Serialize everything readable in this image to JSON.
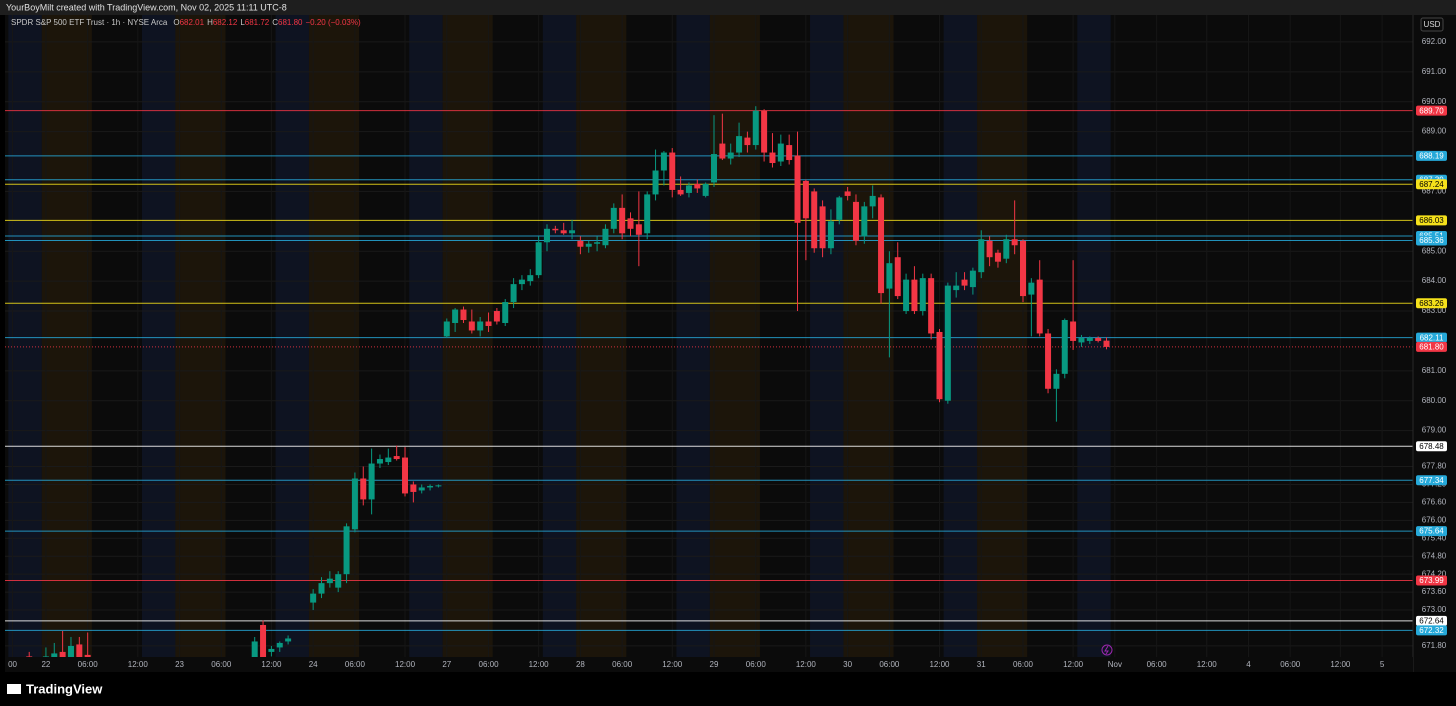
{
  "chart_data": {
    "type": "candlestick",
    "credit": "YourBoyMilt created with TradingView.com, Nov 02, 2025 11:11 UTC-8",
    "symbol": "SPDR S&P 500 ETF Trust · 1h · NYSE Arca",
    "legend_fields": [
      {
        "key": "O",
        "value": "682.01"
      },
      {
        "key": "H",
        "value": "682.12"
      },
      {
        "key": "L",
        "value": "681.72"
      },
      {
        "key": "C",
        "value": "681.80"
      }
    ],
    "change": "−0.20 (−0.03%)",
    "currency": "USD",
    "brand": "TradingView",
    "up_color": "#089981",
    "down_color": "#f23645",
    "grid": true,
    "xlim": [
      -4.9,
      163.7
    ],
    "ylim": [
      671.43,
      692.9
    ],
    "xticks": [
      {
        "value": -4,
        "label": "00"
      },
      {
        "value": 0,
        "label": "22"
      },
      {
        "value": 5,
        "label": "06:00"
      },
      {
        "value": 11,
        "label": "12:00"
      },
      {
        "value": 16,
        "label": "23"
      },
      {
        "value": 21,
        "label": "06:00"
      },
      {
        "value": 27,
        "label": "12:00"
      },
      {
        "value": 32,
        "label": "24"
      },
      {
        "value": 37,
        "label": "06:00"
      },
      {
        "value": 43,
        "label": "12:00"
      },
      {
        "value": 48,
        "label": "27"
      },
      {
        "value": 53,
        "label": "06:00"
      },
      {
        "value": 59,
        "label": "12:00"
      },
      {
        "value": 64,
        "label": "28"
      },
      {
        "value": 69,
        "label": "06:00"
      },
      {
        "value": 75,
        "label": "12:00"
      },
      {
        "value": 80,
        "label": "29"
      },
      {
        "value": 85,
        "label": "06:00"
      },
      {
        "value": 91,
        "label": "12:00"
      },
      {
        "value": 96,
        "label": "30"
      },
      {
        "value": 101,
        "label": "06:00"
      },
      {
        "value": 107,
        "label": "12:00"
      },
      {
        "value": 112,
        "label": "31"
      },
      {
        "value": 117,
        "label": "06:00"
      },
      {
        "value": 123,
        "label": "12:00"
      },
      {
        "value": 128,
        "label": "Nov"
      },
      {
        "value": 133,
        "label": "06:00"
      },
      {
        "value": 139,
        "label": "12:00"
      },
      {
        "value": 144,
        "label": "4"
      },
      {
        "value": 149,
        "label": "06:00"
      },
      {
        "value": 155,
        "label": "12:00"
      },
      {
        "value": 160,
        "label": "5"
      }
    ],
    "yticks": [
      {
        "value": 692,
        "label": "692.00"
      },
      {
        "value": 691,
        "label": "691.00"
      },
      {
        "value": 690,
        "label": "690.00"
      },
      {
        "value": 689,
        "label": "689.00"
      },
      {
        "value": 687,
        "label": "687.00"
      },
      {
        "value": 685,
        "label": "685.00"
      },
      {
        "value": 684,
        "label": "684.00"
      },
      {
        "value": 683,
        "label": "683.00"
      },
      {
        "value": 681,
        "label": "681.00"
      },
      {
        "value": 680,
        "label": "680.00"
      },
      {
        "value": 679,
        "label": "679.00"
      },
      {
        "value": 677.8,
        "label": "677.80"
      },
      {
        "value": 677.2,
        "label": "677.20"
      },
      {
        "value": 676.6,
        "label": "676.60"
      },
      {
        "value": 676,
        "label": "676.00"
      },
      {
        "value": 675.4,
        "label": "675.40"
      },
      {
        "value": 674.8,
        "label": "674.80"
      },
      {
        "value": 674.2,
        "label": "674.20"
      },
      {
        "value": 673.6,
        "label": "673.60"
      },
      {
        "value": 673,
        "label": "673.00"
      },
      {
        "value": 671.8,
        "label": "671.80"
      }
    ],
    "levels": [
      {
        "value": 689.7,
        "label": "689.70",
        "color": "#f23645"
      },
      {
        "value": 688.19,
        "label": "688.19",
        "color": "#26a9d9"
      },
      {
        "value": 687.39,
        "label": "687.39",
        "color": "#26a9d9"
      },
      {
        "value": 687.24,
        "label": "687.24",
        "color": "#f5e11b"
      },
      {
        "value": 686.03,
        "label": "686.03",
        "color": "#f5e11b"
      },
      {
        "value": 685.51,
        "label": "685.51",
        "color": "#26a9d9"
      },
      {
        "value": 685.36,
        "label": "685.36",
        "color": "#26a9d9"
      },
      {
        "value": 683.26,
        "label": "683.26",
        "color": "#f5e11b"
      },
      {
        "value": 682.11,
        "label": "682.11",
        "color": "#26a9d9"
      },
      {
        "value": 681.8,
        "label": "681.80",
        "color": "#f23645",
        "dashed": true
      },
      {
        "value": 678.48,
        "label": "678.48",
        "color": "#ffffff"
      },
      {
        "value": 677.34,
        "label": "677.34",
        "color": "#26a9d9"
      },
      {
        "value": 675.64,
        "label": "675.64",
        "color": "#26a9d9"
      },
      {
        "value": 673.99,
        "label": "673.99",
        "color": "#f23645"
      },
      {
        "value": 672.64,
        "label": "672.64",
        "color": "#ffffff"
      },
      {
        "value": 672.32,
        "label": "672.32",
        "color": "#26a9d9"
      }
    ],
    "candles": [
      {
        "x": -2,
        "open": 671.45,
        "high": 671.6,
        "low": 671.2,
        "close": 671.3
      },
      {
        "x": 0,
        "open": 671.3,
        "high": 671.75,
        "low": 671.1,
        "close": 671.45
      },
      {
        "x": 1,
        "open": 671.4,
        "high": 671.9,
        "low": 671.2,
        "close": 671.55
      },
      {
        "x": 2,
        "open": 671.6,
        "high": 672.3,
        "low": 671.3,
        "close": 671.4
      },
      {
        "x": 3,
        "open": 671.35,
        "high": 672.1,
        "low": 671.1,
        "close": 671.8
      },
      {
        "x": 4,
        "open": 671.85,
        "high": 672.1,
        "low": 671.2,
        "close": 671.4
      },
      {
        "x": 5,
        "open": 671.5,
        "high": 672.25,
        "low": 671.0,
        "close": 671.2
      },
      {
        "x": 25,
        "open": 671.1,
        "high": 672.1,
        "low": 670.95,
        "close": 671.95
      },
      {
        "x": 26,
        "open": 672.5,
        "high": 672.65,
        "low": 671.0,
        "close": 671.25
      },
      {
        "x": 27,
        "open": 671.6,
        "high": 671.8,
        "low": 671.45,
        "close": 671.7
      },
      {
        "x": 28,
        "open": 671.75,
        "high": 671.95,
        "low": 671.6,
        "close": 671.9
      },
      {
        "x": 29,
        "open": 671.95,
        "high": 672.15,
        "low": 671.85,
        "close": 672.05
      },
      {
        "x": 32,
        "open": 673.25,
        "high": 673.7,
        "low": 673.0,
        "close": 673.55
      },
      {
        "x": 33,
        "open": 673.55,
        "high": 674.1,
        "low": 673.4,
        "close": 673.9
      },
      {
        "x": 34,
        "open": 673.9,
        "high": 674.3,
        "low": 673.75,
        "close": 674.05
      },
      {
        "x": 35,
        "open": 673.75,
        "high": 674.3,
        "low": 673.6,
        "close": 674.2
      },
      {
        "x": 36,
        "open": 674.2,
        "high": 675.9,
        "low": 673.9,
        "close": 675.8
      },
      {
        "x": 37,
        "open": 675.7,
        "high": 677.6,
        "low": 675.6,
        "close": 677.4
      },
      {
        "x": 38,
        "open": 677.4,
        "high": 677.8,
        "low": 676.5,
        "close": 676.7
      },
      {
        "x": 39,
        "open": 676.7,
        "high": 678.4,
        "low": 676.2,
        "close": 677.9
      },
      {
        "x": 40,
        "open": 677.9,
        "high": 678.2,
        "low": 677.75,
        "close": 678.05
      },
      {
        "x": 41,
        "open": 677.95,
        "high": 678.4,
        "low": 677.85,
        "close": 678.1
      },
      {
        "x": 42,
        "open": 678.15,
        "high": 678.5,
        "low": 678.0,
        "close": 678.05
      },
      {
        "x": 43,
        "open": 678.1,
        "high": 678.45,
        "low": 676.8,
        "close": 676.9
      },
      {
        "x": 44,
        "open": 677.2,
        "high": 677.3,
        "low": 676.6,
        "close": 676.95
      },
      {
        "x": 45,
        "open": 677.0,
        "high": 677.2,
        "low": 676.9,
        "close": 677.1
      },
      {
        "x": 46,
        "open": 677.1,
        "high": 677.2,
        "low": 677.0,
        "close": 677.15
      },
      {
        "x": 47,
        "open": 677.15,
        "high": 677.2,
        "low": 677.1,
        "close": 677.17
      },
      {
        "x": 48,
        "open": 682.15,
        "high": 682.75,
        "low": 682.1,
        "close": 682.65
      },
      {
        "x": 49,
        "open": 682.6,
        "high": 683.1,
        "low": 682.3,
        "close": 683.05
      },
      {
        "x": 50,
        "open": 683.05,
        "high": 683.15,
        "low": 682.6,
        "close": 682.7
      },
      {
        "x": 51,
        "open": 682.65,
        "high": 683.05,
        "low": 682.25,
        "close": 682.35
      },
      {
        "x": 52,
        "open": 682.35,
        "high": 682.8,
        "low": 682.15,
        "close": 682.65
      },
      {
        "x": 53,
        "open": 682.65,
        "high": 682.95,
        "low": 682.3,
        "close": 682.5
      },
      {
        "x": 54,
        "open": 683.0,
        "high": 683.1,
        "low": 682.55,
        "close": 682.65
      },
      {
        "x": 55,
        "open": 682.6,
        "high": 683.4,
        "low": 682.5,
        "close": 683.3
      },
      {
        "x": 56,
        "open": 683.3,
        "high": 684.1,
        "low": 683.1,
        "close": 683.9
      },
      {
        "x": 57,
        "open": 683.9,
        "high": 684.2,
        "low": 683.7,
        "close": 684.05
      },
      {
        "x": 58,
        "open": 684.0,
        "high": 684.4,
        "low": 683.85,
        "close": 684.2
      },
      {
        "x": 59,
        "open": 684.2,
        "high": 685.5,
        "low": 684.1,
        "close": 685.3
      },
      {
        "x": 60,
        "open": 685.3,
        "high": 685.9,
        "low": 685.0,
        "close": 685.75
      },
      {
        "x": 61,
        "open": 685.75,
        "high": 685.85,
        "low": 685.6,
        "close": 685.7
      },
      {
        "x": 62,
        "open": 685.7,
        "high": 685.95,
        "low": 685.55,
        "close": 685.6
      },
      {
        "x": 63,
        "open": 685.6,
        "high": 686.05,
        "low": 685.4,
        "close": 685.7
      },
      {
        "x": 64,
        "open": 685.35,
        "high": 685.5,
        "low": 684.9,
        "close": 685.15
      },
      {
        "x": 65,
        "open": 685.15,
        "high": 685.35,
        "low": 684.95,
        "close": 685.25
      },
      {
        "x": 66,
        "open": 685.25,
        "high": 685.5,
        "low": 685.0,
        "close": 685.3
      },
      {
        "x": 67,
        "open": 685.2,
        "high": 685.9,
        "low": 685.1,
        "close": 685.75
      },
      {
        "x": 68,
        "open": 685.75,
        "high": 686.6,
        "low": 685.6,
        "close": 686.45
      },
      {
        "x": 69,
        "open": 686.45,
        "high": 686.9,
        "low": 685.4,
        "close": 685.6
      },
      {
        "x": 70,
        "open": 686.1,
        "high": 686.3,
        "low": 685.5,
        "close": 685.75
      },
      {
        "x": 71,
        "open": 685.9,
        "high": 687.0,
        "low": 684.5,
        "close": 685.55
      },
      {
        "x": 72,
        "open": 685.6,
        "high": 687.0,
        "low": 685.4,
        "close": 686.9
      },
      {
        "x": 73,
        "open": 686.9,
        "high": 688.4,
        "low": 686.7,
        "close": 687.7
      },
      {
        "x": 74,
        "open": 687.7,
        "high": 688.35,
        "low": 687.2,
        "close": 688.3
      },
      {
        "x": 75,
        "open": 688.3,
        "high": 688.45,
        "low": 686.8,
        "close": 687.05
      },
      {
        "x": 76,
        "open": 687.05,
        "high": 687.5,
        "low": 686.85,
        "close": 686.9
      },
      {
        "x": 77,
        "open": 686.95,
        "high": 687.3,
        "low": 686.8,
        "close": 687.2
      },
      {
        "x": 78,
        "open": 687.25,
        "high": 687.4,
        "low": 686.95,
        "close": 687.1
      },
      {
        "x": 79,
        "open": 686.85,
        "high": 687.3,
        "low": 686.8,
        "close": 687.25
      },
      {
        "x": 80,
        "open": 687.3,
        "high": 689.55,
        "low": 687.15,
        "close": 688.25
      },
      {
        "x": 81,
        "open": 688.6,
        "high": 689.6,
        "low": 688.05,
        "close": 688.1
      },
      {
        "x": 82,
        "open": 688.1,
        "high": 688.6,
        "low": 687.9,
        "close": 688.3
      },
      {
        "x": 83,
        "open": 688.3,
        "high": 689.3,
        "low": 688.15,
        "close": 688.85
      },
      {
        "x": 84,
        "open": 688.8,
        "high": 689.0,
        "low": 688.3,
        "close": 688.55
      },
      {
        "x": 85,
        "open": 688.55,
        "high": 689.85,
        "low": 688.4,
        "close": 689.7
      },
      {
        "x": 86,
        "open": 689.7,
        "high": 689.75,
        "low": 688.0,
        "close": 688.3
      },
      {
        "x": 87,
        "open": 688.3,
        "high": 688.95,
        "low": 687.8,
        "close": 687.95
      },
      {
        "x": 88,
        "open": 688.0,
        "high": 688.9,
        "low": 687.85,
        "close": 688.6
      },
      {
        "x": 89,
        "open": 688.55,
        "high": 688.9,
        "low": 687.9,
        "close": 688.05
      },
      {
        "x": 90,
        "open": 688.2,
        "high": 689.0,
        "low": 683.0,
        "close": 685.95
      },
      {
        "x": 91,
        "open": 687.35,
        "high": 687.4,
        "low": 684.7,
        "close": 686.1
      },
      {
        "x": 92,
        "open": 687.0,
        "high": 687.1,
        "low": 684.95,
        "close": 685.1
      },
      {
        "x": 93,
        "open": 686.5,
        "high": 686.7,
        "low": 684.8,
        "close": 685.1
      },
      {
        "x": 94,
        "open": 685.1,
        "high": 686.4,
        "low": 684.9,
        "close": 686.0
      },
      {
        "x": 95,
        "open": 686.05,
        "high": 686.85,
        "low": 685.9,
        "close": 686.8
      },
      {
        "x": 96,
        "open": 687.0,
        "high": 687.15,
        "low": 686.7,
        "close": 686.85
      },
      {
        "x": 97,
        "open": 686.65,
        "high": 686.9,
        "low": 685.2,
        "close": 685.35
      },
      {
        "x": 98,
        "open": 685.5,
        "high": 686.65,
        "low": 685.25,
        "close": 686.5
      },
      {
        "x": 99,
        "open": 686.5,
        "high": 687.2,
        "low": 686.1,
        "close": 686.85
      },
      {
        "x": 100,
        "open": 686.8,
        "high": 686.9,
        "low": 683.25,
        "close": 683.6
      },
      {
        "x": 101,
        "open": 683.75,
        "high": 685.0,
        "low": 681.45,
        "close": 684.6
      },
      {
        "x": 102,
        "open": 684.8,
        "high": 685.3,
        "low": 683.4,
        "close": 683.5
      },
      {
        "x": 103,
        "open": 683.0,
        "high": 684.25,
        "low": 682.9,
        "close": 684.05
      },
      {
        "x": 104,
        "open": 684.05,
        "high": 684.5,
        "low": 682.9,
        "close": 683.0
      },
      {
        "x": 105,
        "open": 683.0,
        "high": 684.25,
        "low": 682.85,
        "close": 684.1
      },
      {
        "x": 106,
        "open": 684.1,
        "high": 684.25,
        "low": 682.05,
        "close": 682.25
      },
      {
        "x": 107,
        "open": 682.3,
        "high": 682.4,
        "low": 679.95,
        "close": 680.05
      },
      {
        "x": 108,
        "open": 680.0,
        "high": 683.95,
        "low": 679.9,
        "close": 683.85
      },
      {
        "x": 109,
        "open": 683.7,
        "high": 684.3,
        "low": 683.45,
        "close": 683.85
      },
      {
        "x": 110,
        "open": 684.05,
        "high": 684.3,
        "low": 683.7,
        "close": 683.85
      },
      {
        "x": 111,
        "open": 683.8,
        "high": 684.45,
        "low": 683.55,
        "close": 684.35
      },
      {
        "x": 112,
        "open": 684.3,
        "high": 685.7,
        "low": 684.1,
        "close": 685.4
      },
      {
        "x": 113,
        "open": 685.35,
        "high": 685.5,
        "low": 684.5,
        "close": 684.8
      },
      {
        "x": 114,
        "open": 684.95,
        "high": 685.05,
        "low": 684.45,
        "close": 684.65
      },
      {
        "x": 115,
        "open": 684.75,
        "high": 685.55,
        "low": 684.6,
        "close": 685.4
      },
      {
        "x": 116,
        "open": 685.4,
        "high": 686.7,
        "low": 684.9,
        "close": 685.2
      },
      {
        "x": 117,
        "open": 685.35,
        "high": 685.4,
        "low": 683.3,
        "close": 683.5
      },
      {
        "x": 118,
        "open": 683.55,
        "high": 684.1,
        "low": 682.15,
        "close": 683.95
      },
      {
        "x": 119,
        "open": 684.05,
        "high": 684.7,
        "low": 682.15,
        "close": 682.25
      },
      {
        "x": 120,
        "open": 682.25,
        "high": 682.4,
        "low": 680.25,
        "close": 680.4
      },
      {
        "x": 121,
        "open": 680.4,
        "high": 681.05,
        "low": 679.3,
        "close": 680.9
      },
      {
        "x": 122,
        "open": 680.9,
        "high": 682.75,
        "low": 680.75,
        "close": 682.7
      },
      {
        "x": 123,
        "open": 682.65,
        "high": 684.7,
        "low": 681.7,
        "close": 682.0
      },
      {
        "x": 124,
        "open": 681.95,
        "high": 682.2,
        "low": 681.8,
        "close": 682.1
      },
      {
        "x": 125,
        "open": 682.0,
        "high": 682.15,
        "low": 681.9,
        "close": 682.1
      },
      {
        "x": 126,
        "open": 682.1,
        "high": 682.15,
        "low": 681.95,
        "close": 682.0
      },
      {
        "x": 127,
        "open": 682.01,
        "high": 682.12,
        "low": 681.72,
        "close": 681.8
      }
    ]
  }
}
